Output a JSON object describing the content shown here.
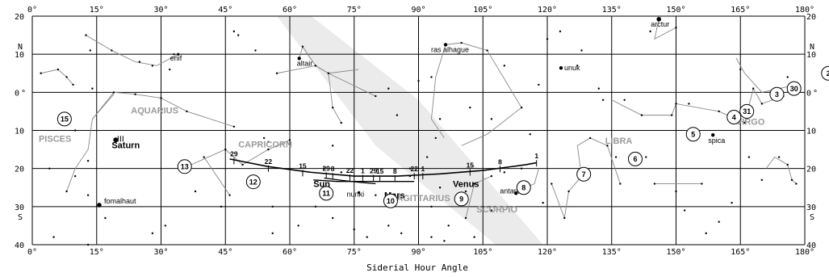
{
  "chart_data": {
    "type": "scatter",
    "xlabel": "Siderial Hour Angle",
    "xlim": [
      0,
      180
    ],
    "ylim": [
      -20,
      40
    ],
    "x_ticks": [
      0,
      15,
      30,
      45,
      60,
      75,
      90,
      105,
      120,
      135,
      150,
      165,
      180
    ],
    "x_tick_labels": [
      "0°",
      "15°",
      "30°",
      "45°",
      "60°",
      "75°",
      "90°",
      "105°",
      "120°",
      "135°",
      "150°",
      "165°",
      "180°"
    ],
    "y_ticks": [
      -20,
      -10,
      0,
      10,
      20,
      30,
      40
    ],
    "y_tick_labels": [
      "20",
      "10",
      "0",
      "10",
      "20",
      "30",
      "40"
    ],
    "y_tick_suffix": {
      "-10": "N",
      "0": "°",
      "30": "S"
    },
    "grid": true,
    "ecliptic_band": [
      {
        "x": 57,
        "y": -20
      },
      {
        "x": 65,
        "y": -20
      },
      {
        "x": 90,
        "y": 2
      },
      {
        "x": 119,
        "y": 40
      },
      {
        "x": 108,
        "y": 40
      },
      {
        "x": 80,
        "y": 14
      }
    ],
    "stars": [
      {
        "name": "arctur",
        "x": 146,
        "y": -19.2,
        "mag": 3
      },
      {
        "name": "ras alhague",
        "x": 96.3,
        "y": -12.5,
        "mag": 2
      },
      {
        "name": "enif",
        "x": 34,
        "y": -10,
        "mag": 1
      },
      {
        "name": "altair",
        "x": 62.2,
        "y": -8.9,
        "mag": 2
      },
      {
        "name": "unuk",
        "x": 123.2,
        "y": -6.4,
        "mag": 2
      },
      {
        "name": "spica",
        "x": 158.6,
        "y": 11.2,
        "mag": 2
      },
      {
        "name": "nunki",
        "x": 76.1,
        "y": 26.3,
        "mag": 1
      },
      {
        "name": "antares",
        "x": 112.7,
        "y": 26.5,
        "mag": 2
      },
      {
        "name": "fomalhaut",
        "x": 15.6,
        "y": 29.6,
        "mag": 3
      }
    ],
    "minor_stars": [
      [
        12.5,
        -15
      ],
      [
        13.5,
        -11
      ],
      [
        18.5,
        -11
      ],
      [
        25,
        -8
      ],
      [
        28,
        -7
      ],
      [
        33,
        -10
      ],
      [
        32,
        -6
      ],
      [
        2,
        -5
      ],
      [
        6,
        -6
      ],
      [
        8,
        -4
      ],
      [
        9.5,
        -2
      ],
      [
        14,
        -1
      ],
      [
        19,
        0
      ],
      [
        24,
        0.5
      ],
      [
        30,
        1.5
      ],
      [
        36,
        5
      ],
      [
        47,
        9
      ],
      [
        45,
        15
      ],
      [
        49,
        19
      ],
      [
        55,
        15
      ],
      [
        55,
        13
      ],
      [
        54,
        12
      ],
      [
        60,
        12.5
      ],
      [
        40,
        17
      ],
      [
        35,
        20
      ],
      [
        38,
        26
      ],
      [
        46,
        27
      ],
      [
        44,
        30
      ],
      [
        31,
        35
      ],
      [
        28,
        37
      ],
      [
        5,
        38
      ],
      [
        13,
        40
      ],
      [
        17,
        33
      ],
      [
        4,
        20
      ],
      [
        10,
        10
      ],
      [
        13,
        18
      ],
      [
        10,
        22
      ],
      [
        8,
        26
      ],
      [
        13,
        27
      ],
      [
        47,
        -16
      ],
      [
        48,
        -15
      ],
      [
        52,
        -11
      ],
      [
        57,
        -5
      ],
      [
        63,
        -12
      ],
      [
        66,
        -7
      ],
      [
        69,
        -5
      ],
      [
        70,
        4
      ],
      [
        72,
        8
      ],
      [
        70,
        14
      ],
      [
        68,
        20
      ],
      [
        72,
        21
      ],
      [
        80,
        27
      ],
      [
        84,
        29
      ],
      [
        83,
        35
      ],
      [
        86,
        37
      ],
      [
        93,
        38
      ],
      [
        96,
        39
      ],
      [
        93,
        30
      ],
      [
        88,
        22
      ],
      [
        92,
        17
      ],
      [
        94,
        12
      ],
      [
        95,
        7
      ],
      [
        85,
        6
      ],
      [
        80,
        1
      ],
      [
        83,
        -1
      ],
      [
        90,
        -3
      ],
      [
        93,
        -4
      ],
      [
        100,
        -13
      ],
      [
        106,
        -11
      ],
      [
        110,
        -7
      ],
      [
        114,
        4
      ],
      [
        116,
        11
      ],
      [
        118,
        -2
      ],
      [
        120,
        -14
      ],
      [
        123,
        -16
      ],
      [
        128,
        -11
      ],
      [
        132,
        -1
      ],
      [
        138,
        2
      ],
      [
        142,
        6
      ],
      [
        149,
        6
      ],
      [
        150,
        3
      ],
      [
        144,
        -16
      ],
      [
        150,
        -17
      ],
      [
        127,
        -7
      ],
      [
        133,
        2
      ],
      [
        121,
        24
      ],
      [
        119,
        29
      ],
      [
        124,
        33
      ],
      [
        125,
        26
      ],
      [
        128,
        22
      ],
      [
        130,
        12
      ],
      [
        134,
        14
      ],
      [
        136,
        17
      ],
      [
        137,
        24
      ],
      [
        143,
        17
      ],
      [
        145,
        24
      ],
      [
        150,
        26
      ],
      [
        156,
        24
      ],
      [
        152,
        31
      ],
      [
        160,
        34
      ],
      [
        157,
        37
      ],
      [
        163,
        29
      ],
      [
        167,
        17
      ],
      [
        170,
        23
      ],
      [
        174,
        17
      ],
      [
        176,
        19
      ],
      [
        177,
        23
      ],
      [
        178,
        24
      ],
      [
        170,
        3
      ],
      [
        168,
        -1
      ],
      [
        166,
        8
      ],
      [
        172,
        0
      ],
      [
        175,
        1
      ],
      [
        178,
        -2
      ],
      [
        176,
        -4
      ],
      [
        165,
        -6
      ],
      [
        160,
        5
      ],
      [
        153,
        3
      ],
      [
        103,
        38
      ],
      [
        101,
        33
      ],
      [
        107,
        31
      ],
      [
        103,
        24
      ],
      [
        107,
        22
      ],
      [
        110,
        21
      ],
      [
        114,
        20
      ],
      [
        101,
        26
      ],
      [
        99,
        29
      ],
      [
        97,
        35
      ],
      [
        95,
        25
      ],
      [
        88,
        20
      ],
      [
        107,
        7
      ],
      [
        102,
        4
      ],
      [
        56,
        30
      ],
      [
        56,
        37
      ],
      [
        62,
        35
      ],
      [
        66,
        30
      ],
      [
        70,
        33
      ],
      [
        75,
        36
      ],
      [
        78,
        38
      ]
    ],
    "constellation_lines": [
      [
        [
          12.5,
          -15
        ],
        [
          18.5,
          -11
        ],
        [
          24,
          -8
        ],
        [
          29,
          -7
        ],
        [
          34,
          -10
        ]
      ],
      [
        [
          2,
          -5
        ],
        [
          6,
          -6
        ],
        [
          8,
          -4
        ],
        [
          9.5,
          -2
        ]
      ],
      [
        [
          18.5,
          0
        ],
        [
          19,
          0.5
        ],
        [
          14,
          7
        ],
        [
          13,
          15
        ],
        [
          10,
          20
        ],
        [
          8,
          26
        ]
      ],
      [
        [
          19,
          0
        ],
        [
          24,
          0.5
        ],
        [
          30,
          1.5
        ],
        [
          36,
          5
        ],
        [
          47,
          9
        ]
      ],
      [
        [
          19,
          0
        ],
        [
          14,
          7
        ]
      ],
      [
        [
          62.2,
          -8.9
        ],
        [
          63,
          -12
        ],
        [
          66,
          -7
        ],
        [
          69,
          -5
        ],
        [
          70,
          4
        ],
        [
          72,
          8
        ]
      ],
      [
        [
          57,
          -5
        ],
        [
          66,
          -7
        ],
        [
          69,
          -5
        ],
        [
          76,
          -6
        ]
      ],
      [
        [
          69,
          -5
        ],
        [
          80,
          1
        ]
      ],
      [
        [
          35,
          20
        ],
        [
          45,
          15
        ],
        [
          49,
          19
        ],
        [
          55,
          15
        ],
        [
          60,
          12.5
        ]
      ],
      [
        [
          40,
          17
        ],
        [
          46,
          27
        ]
      ],
      [
        [
          96.3,
          -12.5
        ],
        [
          100,
          -13
        ],
        [
          106,
          -11
        ],
        [
          114,
          4
        ],
        [
          106,
          11
        ],
        [
          100,
          14
        ]
      ],
      [
        [
          96.3,
          -12.5
        ],
        [
          94,
          -4
        ],
        [
          93,
          7
        ],
        [
          96,
          12
        ]
      ],
      [
        [
          121,
          24
        ],
        [
          124,
          33
        ],
        [
          125,
          26
        ],
        [
          128,
          22
        ],
        [
          127,
          14
        ],
        [
          130,
          12
        ],
        [
          134,
          14
        ],
        [
          137,
          24
        ]
      ],
      [
        [
          135,
          2
        ],
        [
          142,
          6
        ],
        [
          149,
          6
        ],
        [
          150,
          3
        ],
        [
          160,
          5
        ],
        [
          166,
          8
        ],
        [
          168,
          -1
        ],
        [
          170,
          3
        ],
        [
          175,
          1
        ]
      ],
      [
        [
          146,
          -19.2
        ],
        [
          145,
          -14
        ],
        [
          150,
          -17
        ]
      ],
      [
        [
          164,
          -9
        ],
        [
          166,
          -5
        ],
        [
          170,
          0
        ],
        [
          178,
          -2
        ]
      ],
      [
        [
          171,
          20
        ],
        [
          173,
          17
        ],
        [
          176,
          19
        ],
        [
          177,
          23
        ],
        [
          178,
          24
        ]
      ],
      [
        [
          145,
          24
        ],
        [
          156,
          24
        ]
      ],
      [
        [
          113,
          26
        ],
        [
          117,
          24
        ],
        [
          118,
          20
        ]
      ],
      [
        [
          101,
          33
        ],
        [
          103,
          24
        ],
        [
          107,
          22
        ]
      ]
    ],
    "constellations": [
      {
        "name": "AQUARIUS",
        "x": 23,
        "y": 5.5
      },
      {
        "name": "PISCES",
        "x": 1.5,
        "y": 13
      },
      {
        "name": "CAPRICORN",
        "x": 48,
        "y": 14.5
      },
      {
        "name": "SAGITTARIUS",
        "x": 83.5,
        "y": 28.5
      },
      {
        "name": "SCORPIO",
        "x": 103.5,
        "y": 31.5
      },
      {
        "name": "LIBRA",
        "x": 133.5,
        "y": 13.5
      },
      {
        "name": "VIRGO",
        "x": 164,
        "y": 8.5
      }
    ],
    "planet_paths": [
      {
        "name": "Sun",
        "label_x": 65.5,
        "label_y": 22.5,
        "points": [
          [
            65.5,
            23
          ],
          [
            71,
            23.4
          ],
          [
            77,
            23.4
          ],
          [
            83,
            23.4
          ],
          [
            89,
            23.4
          ]
        ]
      },
      {
        "name": "Mars",
        "label_x": 82,
        "label_y": 25.5,
        "points": [
          [
            68,
            22.5
          ],
          [
            72,
            23.1
          ],
          [
            76,
            23.6
          ],
          [
            80,
            24
          ]
        ]
      },
      {
        "name": "Venus",
        "label_x": 98,
        "label_y": 22.5,
        "points": [
          [
            46,
            17.5
          ],
          [
            55,
            19.5
          ],
          [
            65,
            21
          ],
          [
            75,
            22
          ],
          [
            85,
            22
          ],
          [
            95,
            21.4
          ],
          [
            105,
            20.5
          ],
          [
            115,
            19
          ],
          [
            117.5,
            18.5
          ]
        ]
      }
    ],
    "day_ticks": [
      {
        "x": 47,
        "y": 17.6,
        "label": "29"
      },
      {
        "x": 55,
        "y": 19.6,
        "label": "22"
      },
      {
        "x": 63,
        "y": 20.8,
        "label": "15"
      },
      {
        "x": 68.5,
        "y": 21.4,
        "label": "29"
      },
      {
        "x": 70,
        "y": 21.6,
        "label": "8"
      },
      {
        "x": 74,
        "y": 22,
        "label": "22"
      },
      {
        "x": 77,
        "y": 22.1,
        "label": "1"
      },
      {
        "x": 79.5,
        "y": 22.1,
        "label": "29"
      },
      {
        "x": 81,
        "y": 22.2,
        "label": "15"
      },
      {
        "x": 84.5,
        "y": 22.2,
        "label": "8"
      },
      {
        "x": 89,
        "y": 21.6,
        "label": "22"
      },
      {
        "x": 91,
        "y": 21.6,
        "label": "1"
      },
      {
        "x": 102,
        "y": 20.6,
        "label": "15"
      },
      {
        "x": 109,
        "y": 19.7,
        "label": "8"
      },
      {
        "x": 117.5,
        "y": 18.2,
        "label": "1"
      }
    ],
    "circled_markers": [
      {
        "n": "15",
        "x": 7.5,
        "y": 7
      },
      {
        "n": "13",
        "x": 35.5,
        "y": 19.5
      },
      {
        "n": "12",
        "x": 51.5,
        "y": 23.5
      },
      {
        "n": "11",
        "x": 68.5,
        "y": 26.5
      },
      {
        "n": "10",
        "x": 83.5,
        "y": 28.5
      },
      {
        "n": "9",
        "x": 100,
        "y": 28
      },
      {
        "n": "8",
        "x": 114.5,
        "y": 25
      },
      {
        "n": "7",
        "x": 128.5,
        "y": 21.5
      },
      {
        "n": "6",
        "x": 140.5,
        "y": 17.5
      },
      {
        "n": "5",
        "x": 154,
        "y": 11
      },
      {
        "n": "4",
        "x": 163.5,
        "y": 6.5
      },
      {
        "n": "31",
        "x": 166.5,
        "y": 5
      },
      {
        "n": "3",
        "x": 173.5,
        "y": 0.5
      },
      {
        "n": "30",
        "x": 177.5,
        "y": -1
      },
      {
        "n": "2",
        "x": 185.5,
        "y": -5
      }
    ],
    "saturn": {
      "name": "Saturn",
      "x": 20,
      "y": 12.5
    }
  }
}
